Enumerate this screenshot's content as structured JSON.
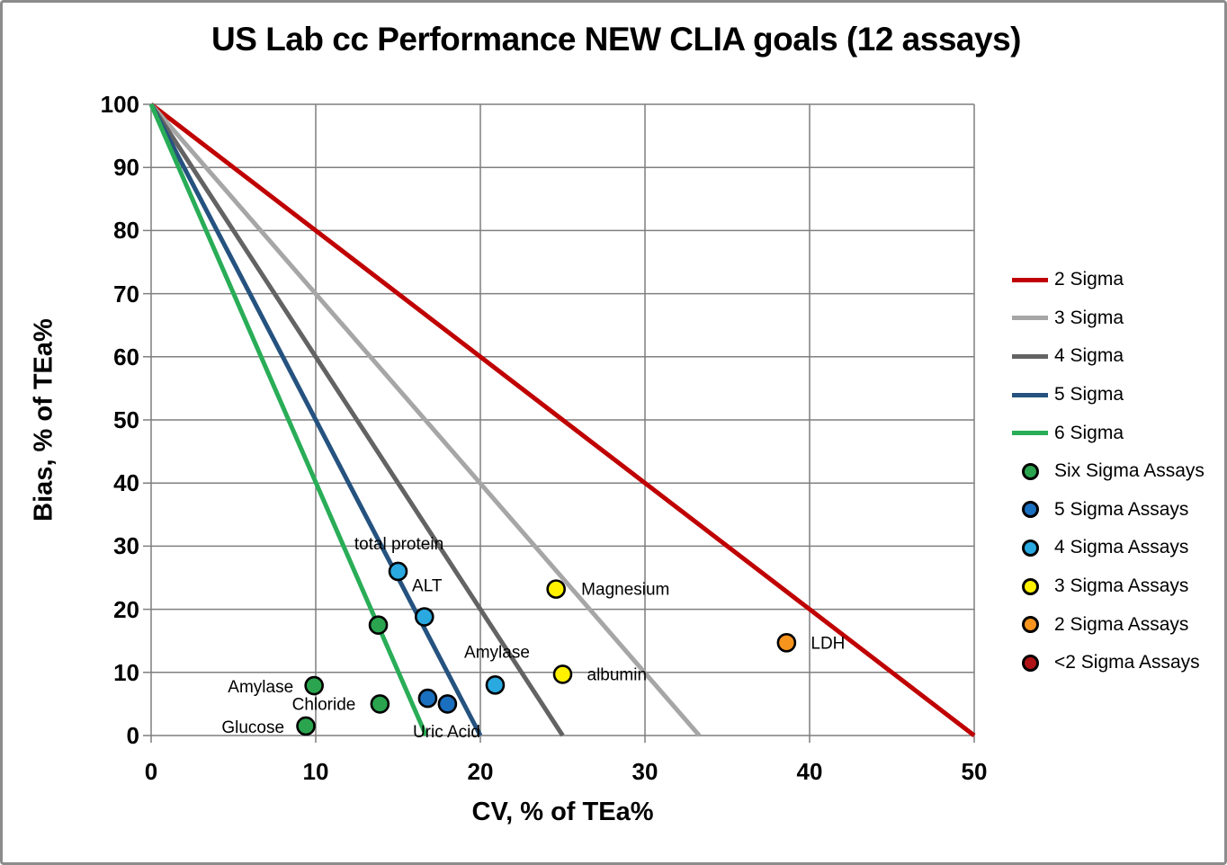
{
  "title": "US Lab cc Performance NEW CLIA goals (12 assays)",
  "chart_data": {
    "type": "scatter",
    "title": "US Lab cc Performance NEW CLIA goals (12 assays)",
    "xlabel": "CV, % of TEa%",
    "ylabel": "Bias, % of TEa%",
    "xlim": [
      0,
      50
    ],
    "ylim": [
      0,
      100
    ],
    "x_ticks": [
      0,
      10,
      20,
      30,
      40,
      50
    ],
    "y_ticks": [
      0,
      10,
      20,
      30,
      40,
      50,
      60,
      70,
      80,
      90,
      100
    ],
    "grid": true,
    "grid_color": "#7f7f7f",
    "legend_position": "right",
    "sigma_lines": [
      {
        "name": "2 Sigma",
        "color": "#c00000",
        "from": [
          0,
          100
        ],
        "to": [
          50,
          0
        ]
      },
      {
        "name": "3 Sigma",
        "color": "#a6a6a6",
        "from": [
          0,
          100
        ],
        "to": [
          33.3,
          0
        ]
      },
      {
        "name": "4 Sigma",
        "color": "#636363",
        "from": [
          0,
          100
        ],
        "to": [
          25,
          0
        ]
      },
      {
        "name": "5 Sigma",
        "color": "#25527f",
        "from": [
          0,
          100
        ],
        "to": [
          20,
          0
        ]
      },
      {
        "name": "6 Sigma",
        "color": "#29ad57",
        "from": [
          0,
          100
        ],
        "to": [
          16.7,
          0
        ]
      }
    ],
    "series": [
      {
        "name": "Six Sigma Assays",
        "color": "#2aa44f",
        "points": [
          {
            "label": "Amylase",
            "cv": 9.9,
            "bias": 7.9,
            "anchor": "end",
            "dx": -23,
            "dy": 2
          },
          {
            "label": "Chloride",
            "cv": 13.9,
            "bias": 5.0,
            "anchor": "end",
            "dx": -27,
            "dy": 1
          },
          {
            "label": "Glucose",
            "cv": 9.4,
            "bias": 1.5,
            "anchor": "end",
            "dx": -24,
            "dy": 2
          },
          {
            "label": "",
            "cv": 13.8,
            "bias": 17.5
          }
        ]
      },
      {
        "name": "5 Sigma Assays",
        "color": "#1b6fbf",
        "points": [
          {
            "label": "Uric Acid",
            "cv": 16.8,
            "bias": 5.9,
            "anchor": "middle",
            "dx": 21,
            "dy": 38
          },
          {
            "label": "",
            "cv": 18.0,
            "bias": 5.0
          }
        ]
      },
      {
        "name": "4 Sigma Assays",
        "color": "#29a9e0",
        "points": [
          {
            "label": "total protein",
            "cv": 15.0,
            "bias": 26.0,
            "anchor": "middle",
            "dx": 1,
            "dy": -30
          },
          {
            "label": "ALT",
            "cv": 16.6,
            "bias": 18.8,
            "anchor": "middle",
            "dx": 3,
            "dy": -34
          },
          {
            "label": "Amylase",
            "cv": 20.9,
            "bias": 8.0,
            "anchor": "middle",
            "dx": 2,
            "dy": -36
          }
        ]
      },
      {
        "name": "3 Sigma Assays",
        "color": "#fff100",
        "points": [
          {
            "label": "Magnesium",
            "cv": 24.6,
            "bias": 23.2,
            "anchor": "start",
            "dx": 28,
            "dy": 1
          },
          {
            "label": "albumin",
            "cv": 25.0,
            "bias": 9.7,
            "anchor": "start",
            "dx": 27,
            "dy": 1
          }
        ]
      },
      {
        "name": "2 Sigma Assays",
        "color": "#f7941d",
        "points": [
          {
            "label": "LDH",
            "cv": 38.6,
            "bias": 14.7,
            "anchor": "start",
            "dx": 27,
            "dy": 1
          }
        ]
      }
    ],
    "legend_items": [
      {
        "label": "2 Sigma",
        "marker": "line",
        "color": "#c00000"
      },
      {
        "label": "3 Sigma",
        "marker": "line",
        "color": "#a6a6a6"
      },
      {
        "label": "4 Sigma",
        "marker": "line",
        "color": "#636363"
      },
      {
        "label": "5 Sigma",
        "marker": "line",
        "color": "#25527f"
      },
      {
        "label": "6 Sigma",
        "marker": "line",
        "color": "#29ad57"
      },
      {
        "label": "Six Sigma Assays",
        "marker": "dot",
        "color": "#2aa44f"
      },
      {
        "label": "5 Sigma Assays",
        "marker": "dot",
        "color": "#1b6fbf"
      },
      {
        "label": "4 Sigma Assays",
        "marker": "dot",
        "color": "#29a9e0"
      },
      {
        "label": "3 Sigma Assays",
        "marker": "dot",
        "color": "#fff100"
      },
      {
        "label": "2 Sigma Assays",
        "marker": "dot",
        "color": "#f7941d"
      },
      {
        "label": "<2 Sigma Assays",
        "marker": "dot",
        "color": "#b01317"
      }
    ]
  }
}
